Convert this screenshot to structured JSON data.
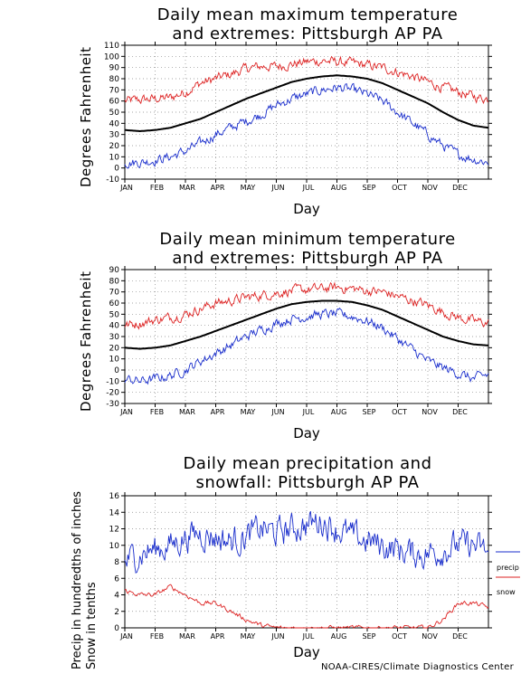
{
  "colors": {
    "high": "#dd2222",
    "mean": "#000000",
    "low": "#1a2ecc",
    "precip": "#1a2ecc",
    "snow": "#dd2222",
    "grid": "#888888"
  },
  "chart_data": [
    {
      "type": "line",
      "title_line1": "Daily mean maximum temperature",
      "title_line2": "and extremes: Pittsburgh AP PA",
      "xlabel": "Day",
      "ylabel": "Degrees Fahrenheit",
      "ylim": [
        -10,
        110
      ],
      "yticks": [
        -10,
        0,
        10,
        20,
        30,
        40,
        50,
        60,
        70,
        80,
        90,
        100,
        110
      ],
      "months": [
        "JAN",
        "FEB",
        "MAR",
        "APR",
        "MAY",
        "JUN",
        "JUL",
        "AUG",
        "SEP",
        "OCT",
        "NOV",
        "DEC"
      ],
      "grid": true,
      "series": [
        {
          "key": "high",
          "values": [
            60,
            61,
            62,
            63,
            68,
            76,
            80,
            84,
            89,
            91,
            91,
            93,
            95,
            96,
            95,
            94,
            92,
            90,
            86,
            82,
            77,
            72,
            68,
            64,
            62
          ]
        },
        {
          "key": "mean",
          "values": [
            34,
            33,
            34,
            36,
            40,
            44,
            50,
            56,
            62,
            67,
            72,
            77,
            80,
            82,
            83,
            82,
            80,
            76,
            70,
            64,
            58,
            50,
            43,
            38,
            36
          ]
        },
        {
          "key": "low",
          "values": [
            5,
            5,
            7,
            10,
            15,
            22,
            30,
            36,
            42,
            48,
            56,
            62,
            66,
            70,
            72,
            70,
            66,
            60,
            50,
            40,
            30,
            20,
            12,
            8,
            5
          ]
        }
      ]
    },
    {
      "type": "line",
      "title_line1": "Daily mean minimum temperature",
      "title_line2": "and extremes: Pittsburgh AP PA",
      "xlabel": "Day",
      "ylabel": "Degrees Fahrenheit",
      "ylim": [
        -30,
        90
      ],
      "yticks": [
        -30,
        -20,
        -10,
        0,
        10,
        20,
        30,
        40,
        50,
        60,
        70,
        80,
        90
      ],
      "months": [
        "JAN",
        "FEB",
        "MAR",
        "APR",
        "MAY",
        "JUN",
        "JUL",
        "AUG",
        "SEP",
        "OCT",
        "NOV",
        "DEC"
      ],
      "grid": true,
      "series": [
        {
          "key": "high",
          "values": [
            40,
            42,
            45,
            47,
            50,
            55,
            60,
            62,
            65,
            67,
            69,
            71,
            72,
            73,
            74,
            73,
            71,
            70,
            66,
            62,
            58,
            52,
            47,
            44,
            42
          ]
        },
        {
          "key": "mean",
          "values": [
            20,
            19,
            20,
            22,
            26,
            30,
            35,
            40,
            45,
            50,
            55,
            59,
            61,
            62,
            62,
            61,
            58,
            54,
            48,
            42,
            36,
            30,
            26,
            23,
            22
          ]
        },
        {
          "key": "low",
          "values": [
            -8,
            -10,
            -8,
            -5,
            0,
            8,
            15,
            22,
            30,
            36,
            42,
            46,
            48,
            50,
            50,
            48,
            44,
            38,
            28,
            18,
            8,
            2,
            -3,
            -8,
            -4
          ]
        }
      ]
    },
    {
      "type": "line",
      "title_line1": "Daily mean precipitation and",
      "title_line2": "snowfall: Pittsburgh AP PA",
      "xlabel": "Day",
      "ylabel_line1": "Precip in hundredths of inches",
      "ylabel_line2": "Snow in tenths",
      "ylim": [
        0,
        16
      ],
      "yticks": [
        0,
        2,
        4,
        6,
        8,
        10,
        12,
        14,
        16
      ],
      "months": [
        "JAN",
        "FEB",
        "MAR",
        "APR",
        "MAY",
        "JUN",
        "JUL",
        "AUG",
        "SEP",
        "OCT",
        "NOV",
        "DEC"
      ],
      "grid": true,
      "legend": [
        "precip",
        "snow"
      ],
      "series": [
        {
          "key": "precip",
          "values": [
            8,
            9,
            9.5,
            10,
            11,
            11.5,
            11,
            10.5,
            11,
            12,
            11.5,
            12,
            12.5,
            13,
            12,
            11,
            10.5,
            10,
            9.5,
            9,
            9,
            9.5,
            10,
            10,
            9
          ]
        },
        {
          "key": "snow",
          "values": [
            4.5,
            4,
            4,
            5,
            4,
            3,
            3,
            2,
            1,
            0.3,
            0,
            0,
            0,
            0,
            0,
            0,
            0,
            0,
            0,
            0,
            0,
            1,
            3,
            3,
            2.5
          ]
        }
      ]
    }
  ],
  "credit": "NOAA-CIRES/Climate Diagnostics Center"
}
